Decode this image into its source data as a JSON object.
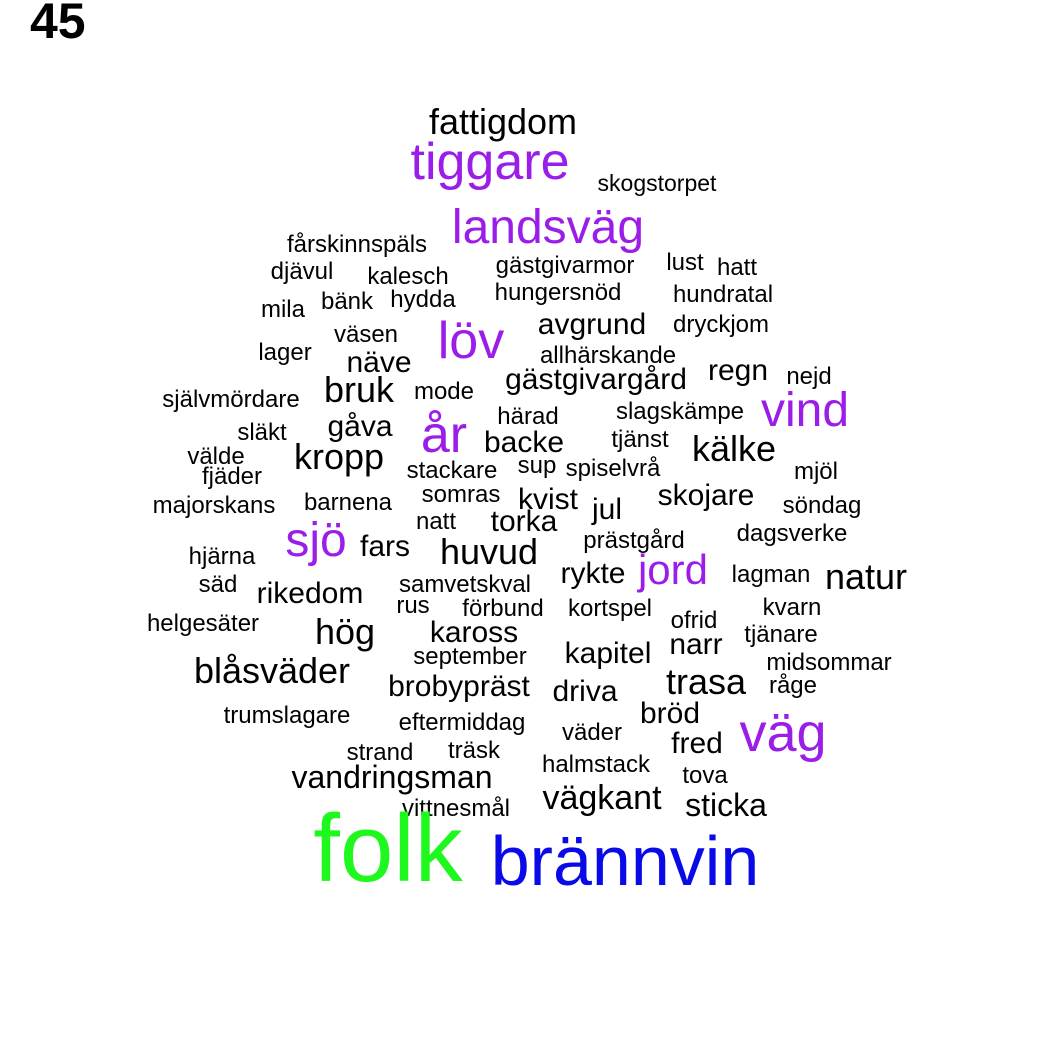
{
  "page_number": "45",
  "colors": {
    "default": "#000000",
    "purple": "#9b1de8",
    "green": "#1ef81e",
    "blue": "#0a0ae8"
  },
  "words": [
    {
      "text": "fattigdom",
      "color": "default"
    },
    {
      "text": "tiggare",
      "color": "purple"
    },
    {
      "text": "skogstorpet",
      "color": "default"
    },
    {
      "text": "landsväg",
      "color": "purple"
    },
    {
      "text": "fårskinnspäls",
      "color": "default"
    },
    {
      "text": "djävul",
      "color": "default"
    },
    {
      "text": "kalesch",
      "color": "default"
    },
    {
      "text": "gästgivarmor",
      "color": "default"
    },
    {
      "text": "lust",
      "color": "default"
    },
    {
      "text": "hatt",
      "color": "default"
    },
    {
      "text": "hungersnöd",
      "color": "default"
    },
    {
      "text": "hundratal",
      "color": "default"
    },
    {
      "text": "mila",
      "color": "default"
    },
    {
      "text": "bänk",
      "color": "default"
    },
    {
      "text": "hydda",
      "color": "default"
    },
    {
      "text": "avgrund",
      "color": "default"
    },
    {
      "text": "dryckjom",
      "color": "default"
    },
    {
      "text": "väsen",
      "color": "default"
    },
    {
      "text": "löv",
      "color": "purple"
    },
    {
      "text": "lager",
      "color": "default"
    },
    {
      "text": "näve",
      "color": "default"
    },
    {
      "text": "allhärskande",
      "color": "default"
    },
    {
      "text": "regn",
      "color": "default"
    },
    {
      "text": "nejd",
      "color": "default"
    },
    {
      "text": "gästgivargård",
      "color": "default"
    },
    {
      "text": "bruk",
      "color": "default"
    },
    {
      "text": "mode",
      "color": "default"
    },
    {
      "text": "självmördare",
      "color": "default"
    },
    {
      "text": "vind",
      "color": "purple"
    },
    {
      "text": "härad",
      "color": "default"
    },
    {
      "text": "slagskämpe",
      "color": "default"
    },
    {
      "text": "gåva",
      "color": "default"
    },
    {
      "text": "år",
      "color": "purple"
    },
    {
      "text": "släkt",
      "color": "default"
    },
    {
      "text": "backe",
      "color": "default"
    },
    {
      "text": "tjänst",
      "color": "default"
    },
    {
      "text": "kälke",
      "color": "default"
    },
    {
      "text": "välde",
      "color": "default"
    },
    {
      "text": "kropp",
      "color": "default"
    },
    {
      "text": "sup",
      "color": "default"
    },
    {
      "text": "spiselvrå",
      "color": "default"
    },
    {
      "text": "stackare",
      "color": "default"
    },
    {
      "text": "mjöl",
      "color": "default"
    },
    {
      "text": "fjäder",
      "color": "default"
    },
    {
      "text": "somras",
      "color": "default"
    },
    {
      "text": "kvist",
      "color": "default"
    },
    {
      "text": "skojare",
      "color": "default"
    },
    {
      "text": "majorskans",
      "color": "default"
    },
    {
      "text": "barnena",
      "color": "default"
    },
    {
      "text": "jul",
      "color": "default"
    },
    {
      "text": "söndag",
      "color": "default"
    },
    {
      "text": "natt",
      "color": "default"
    },
    {
      "text": "torka",
      "color": "default"
    },
    {
      "text": "dagsverke",
      "color": "default"
    },
    {
      "text": "sjö",
      "color": "purple"
    },
    {
      "text": "fars",
      "color": "default"
    },
    {
      "text": "prästgård",
      "color": "default"
    },
    {
      "text": "huvud",
      "color": "default"
    },
    {
      "text": "hjärna",
      "color": "default"
    },
    {
      "text": "jord",
      "color": "purple"
    },
    {
      "text": "rykte",
      "color": "default"
    },
    {
      "text": "lagman",
      "color": "default"
    },
    {
      "text": "natur",
      "color": "default"
    },
    {
      "text": "säd",
      "color": "default"
    },
    {
      "text": "samvetskval",
      "color": "default"
    },
    {
      "text": "rikedom",
      "color": "default"
    },
    {
      "text": "rus",
      "color": "default"
    },
    {
      "text": "förbund",
      "color": "default"
    },
    {
      "text": "kortspel",
      "color": "default"
    },
    {
      "text": "kvarn",
      "color": "default"
    },
    {
      "text": "helgesäter",
      "color": "default"
    },
    {
      "text": "ofrid",
      "color": "default"
    },
    {
      "text": "hög",
      "color": "default"
    },
    {
      "text": "kaross",
      "color": "default"
    },
    {
      "text": "tjänare",
      "color": "default"
    },
    {
      "text": "narr",
      "color": "default"
    },
    {
      "text": "kapitel",
      "color": "default"
    },
    {
      "text": "september",
      "color": "default"
    },
    {
      "text": "midsommar",
      "color": "default"
    },
    {
      "text": "blåsväder",
      "color": "default"
    },
    {
      "text": "trasa",
      "color": "default"
    },
    {
      "text": "råge",
      "color": "default"
    },
    {
      "text": "brobypräst",
      "color": "default"
    },
    {
      "text": "driva",
      "color": "default"
    },
    {
      "text": "bröd",
      "color": "default"
    },
    {
      "text": "trumslagare",
      "color": "default"
    },
    {
      "text": "eftermiddag",
      "color": "default"
    },
    {
      "text": "väder",
      "color": "default"
    },
    {
      "text": "väg",
      "color": "purple"
    },
    {
      "text": "fred",
      "color": "default"
    },
    {
      "text": "strand",
      "color": "default"
    },
    {
      "text": "träsk",
      "color": "default"
    },
    {
      "text": "halmstack",
      "color": "default"
    },
    {
      "text": "vandringsman",
      "color": "default"
    },
    {
      "text": "tova",
      "color": "default"
    },
    {
      "text": "vägkant",
      "color": "default"
    },
    {
      "text": "sticka",
      "color": "default"
    },
    {
      "text": "vittnesmål",
      "color": "default"
    },
    {
      "text": "folk",
      "color": "green"
    },
    {
      "text": "brännvin",
      "color": "blue"
    }
  ]
}
